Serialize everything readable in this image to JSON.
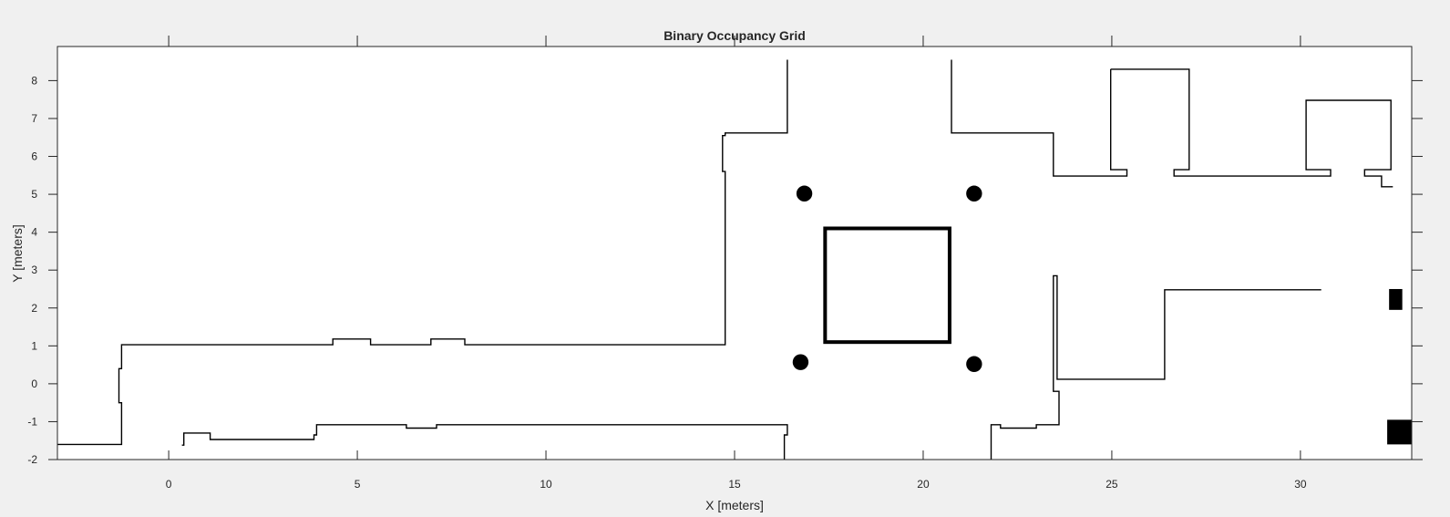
{
  "chart_data": {
    "type": "occupancy-grid",
    "title": "Binary Occupancy Grid",
    "xlabel": "X [meters]",
    "ylabel": "Y [meters]",
    "xlim": [
      -2.95,
      32.95
    ],
    "ylim": [
      -2,
      8.9
    ],
    "xticks": [
      0,
      5,
      10,
      15,
      20,
      25,
      30
    ],
    "yticks": [
      -2,
      -1,
      0,
      1,
      2,
      3,
      4,
      5,
      6,
      7,
      8
    ],
    "grid": false,
    "colors": {
      "occupied": "#000000",
      "free": "#ffffff",
      "background": "#f0f0f0",
      "axis": "#262626"
    },
    "obstacles": [
      {
        "name": "upper-left-wall",
        "kind": "polyline",
        "points": [
          [
            -2.95,
            -1.6
          ],
          [
            -1.25,
            -1.6
          ],
          [
            -1.25,
            -0.5
          ],
          [
            -1.32,
            -0.5
          ],
          [
            -1.32,
            0.4
          ],
          [
            -1.25,
            0.4
          ],
          [
            -1.25,
            1.03
          ],
          [
            4.35,
            1.03
          ],
          [
            4.35,
            1.18
          ],
          [
            5.35,
            1.18
          ],
          [
            5.35,
            1.03
          ],
          [
            6.95,
            1.03
          ],
          [
            6.95,
            1.18
          ],
          [
            7.85,
            1.18
          ],
          [
            7.85,
            1.03
          ],
          [
            14.75,
            1.03
          ],
          [
            14.75,
            5.6
          ],
          [
            14.68,
            5.6
          ],
          [
            14.68,
            6.55
          ],
          [
            14.75,
            6.55
          ],
          [
            14.75,
            6.62
          ],
          [
            16.4,
            6.62
          ],
          [
            16.4,
            8.55
          ]
        ]
      },
      {
        "name": "lower-left-wall",
        "kind": "polyline",
        "points": [
          [
            0.35,
            -1.62
          ],
          [
            0.4,
            -1.62
          ],
          [
            0.4,
            -1.3
          ],
          [
            1.1,
            -1.3
          ],
          [
            1.1,
            -1.47
          ],
          [
            3.85,
            -1.47
          ],
          [
            3.85,
            -1.35
          ],
          [
            3.92,
            -1.35
          ],
          [
            3.92,
            -1.08
          ],
          [
            6.3,
            -1.08
          ],
          [
            6.3,
            -1.17
          ],
          [
            7.1,
            -1.17
          ],
          [
            7.1,
            -1.08
          ],
          [
            16.4,
            -1.08
          ],
          [
            16.4,
            -1.35
          ],
          [
            16.32,
            -1.35
          ],
          [
            16.32,
            -2
          ]
        ]
      },
      {
        "name": "upper-right-wall",
        "kind": "polyline",
        "points": [
          [
            20.75,
            8.55
          ],
          [
            20.75,
            6.62
          ],
          [
            23.45,
            6.62
          ],
          [
            23.45,
            5.48
          ],
          [
            25.4,
            5.48
          ],
          [
            25.4,
            5.65
          ],
          [
            24.97,
            5.65
          ],
          [
            24.97,
            8.3
          ]
        ]
      },
      {
        "name": "room-right-1",
        "kind": "polyline",
        "points": [
          [
            24.97,
            8.3
          ],
          [
            27.05,
            8.3
          ],
          [
            27.05,
            5.65
          ],
          [
            26.65,
            5.65
          ],
          [
            26.65,
            5.48
          ],
          [
            30.8,
            5.48
          ],
          [
            30.8,
            5.65
          ],
          [
            30.15,
            5.65
          ],
          [
            30.15,
            7.48
          ],
          [
            32.4,
            7.48
          ],
          [
            32.4,
            5.65
          ],
          [
            31.7,
            5.65
          ],
          [
            31.7,
            5.48
          ],
          [
            32.15,
            5.48
          ],
          [
            32.15,
            5.2
          ],
          [
            32.45,
            5.2
          ]
        ]
      },
      {
        "name": "right-middle-wall",
        "kind": "polyline",
        "points": [
          [
            21.8,
            -2
          ],
          [
            21.8,
            -1.08
          ],
          [
            22.05,
            -1.08
          ],
          [
            22.05,
            -1.17
          ],
          [
            23.0,
            -1.17
          ],
          [
            23.0,
            -1.08
          ],
          [
            23.6,
            -1.08
          ],
          [
            23.6,
            -0.2
          ],
          [
            23.45,
            -0.2
          ],
          [
            23.45,
            2.85
          ],
          [
            23.55,
            2.85
          ],
          [
            23.55,
            0.12
          ],
          [
            26.4,
            0.12
          ],
          [
            26.4,
            2.48
          ],
          [
            30.55,
            2.48
          ]
        ]
      },
      {
        "name": "center-square",
        "kind": "rect-outline",
        "x": [
          17.4,
          20.7
        ],
        "y": [
          1.1,
          4.1
        ]
      },
      {
        "name": "pillar-1",
        "kind": "circle",
        "cx": 16.85,
        "cy": 5.02,
        "r": 0.21
      },
      {
        "name": "pillar-2",
        "kind": "circle",
        "cx": 21.35,
        "cy": 5.02,
        "r": 0.21
      },
      {
        "name": "pillar-3",
        "kind": "circle",
        "cx": 16.75,
        "cy": 0.57,
        "r": 0.21
      },
      {
        "name": "pillar-4",
        "kind": "circle",
        "cx": 21.35,
        "cy": 0.52,
        "r": 0.21
      },
      {
        "name": "block-right-upper",
        "kind": "rect",
        "x": [
          32.35,
          32.7
        ],
        "y": [
          1.95,
          2.5
        ]
      },
      {
        "name": "block-right-lower",
        "kind": "rect",
        "x": [
          32.3,
          32.95
        ],
        "y": [
          -1.6,
          -0.95
        ]
      }
    ]
  }
}
